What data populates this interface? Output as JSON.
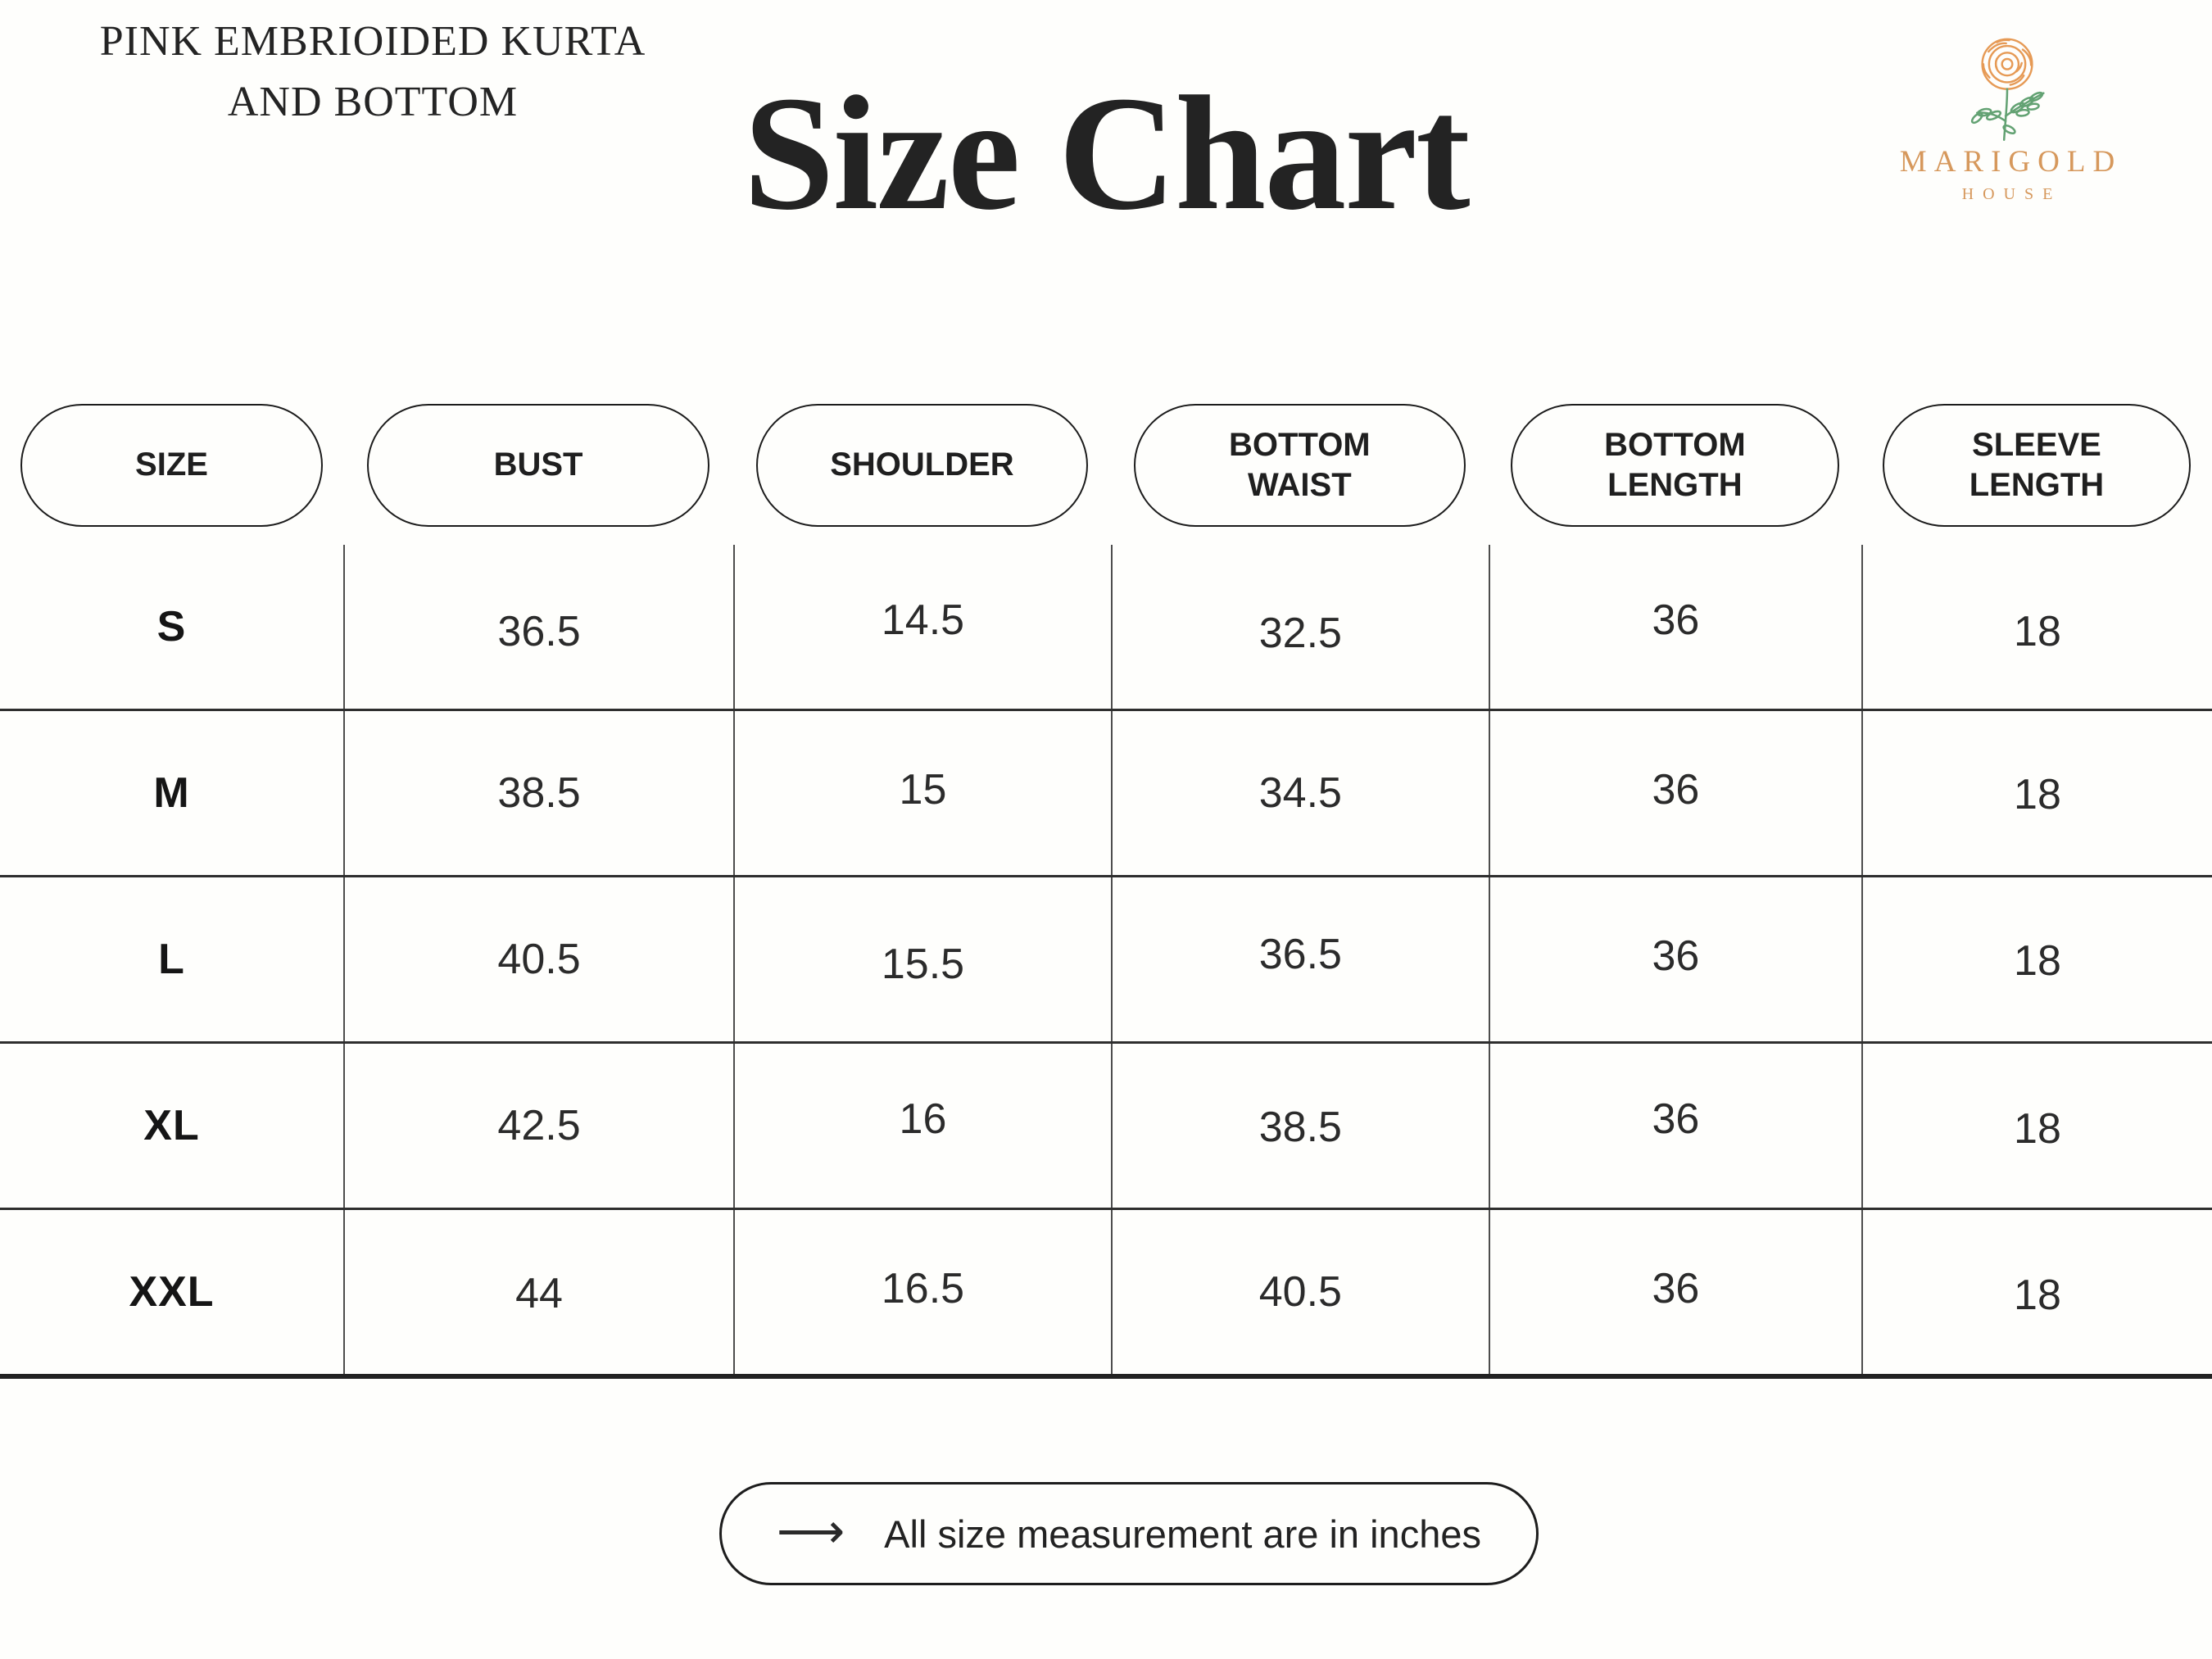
{
  "page": {
    "background": "#FEFEFC"
  },
  "header": {
    "product_title_line1": "PINK EMBRIOIDED KURTA",
    "product_title_line2": "AND BOTTOM",
    "page_title": "Size Chart"
  },
  "logo": {
    "brand_name": "MARIGOLD",
    "brand_subtitle": "HOUSE",
    "flower_color": "#E69A55",
    "leaf_color": "#63A273",
    "text_color": "#D6985C"
  },
  "table": {
    "columns": [
      "SIZE",
      "BUST",
      "SHOULDER",
      "BOTTOM WAIST",
      "BOTTOM LENGTH",
      "SLEEVE LENGTH"
    ],
    "rows": [
      {
        "size": "S",
        "values": [
          "36.5",
          "14.5",
          "32.5",
          "36",
          "18"
        ]
      },
      {
        "size": "M",
        "values": [
          "38.5",
          "15",
          "34.5",
          "36",
          "18"
        ]
      },
      {
        "size": "L",
        "values": [
          "40.5",
          "15.5",
          "36.5",
          "36",
          "18"
        ]
      },
      {
        "size": "XL",
        "values": [
          "42.5",
          "16",
          "38.5",
          "36",
          "18"
        ]
      },
      {
        "size": "XXL",
        "values": [
          "44",
          "16.5",
          "40.5",
          "36",
          "18"
        ]
      }
    ],
    "border_color": "#2E2E2E"
  },
  "footer": {
    "arrow_glyph": "⟶",
    "note": "All size measurement are in inches"
  },
  "chart_data": {
    "type": "table",
    "title": "Size Chart",
    "columns": [
      "SIZE",
      "BUST",
      "SHOULDER",
      "BOTTOM WAIST",
      "BOTTOM LENGTH",
      "SLEEVE LENGTH"
    ],
    "rows": [
      [
        "S",
        36.5,
        14.5,
        32.5,
        36,
        18
      ],
      [
        "M",
        38.5,
        15,
        34.5,
        36,
        18
      ],
      [
        "L",
        40.5,
        15.5,
        36.5,
        36,
        18
      ],
      [
        "XL",
        42.5,
        16,
        38.5,
        36,
        18
      ],
      [
        "XXL",
        44,
        16.5,
        40.5,
        36,
        18
      ]
    ],
    "units": "inches"
  }
}
